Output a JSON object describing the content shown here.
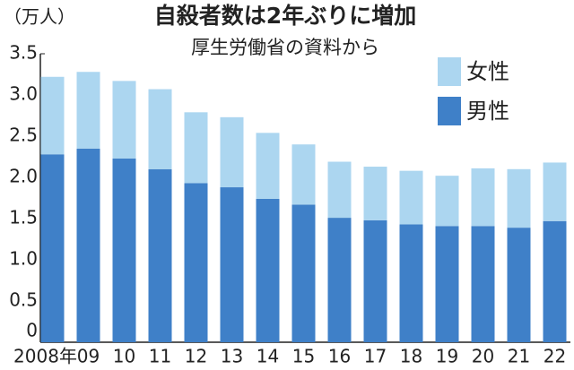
{
  "chart_data": {
    "type": "stacked-bar",
    "title": "自殺者数は2年ぶりに増加",
    "subtitle": "厚生労働省の資料から",
    "y_label": "（万人）",
    "categories": [
      "2008年",
      "09",
      "10",
      "11",
      "12",
      "13",
      "14",
      "15",
      "16",
      "17",
      "18",
      "19",
      "20",
      "21",
      "22"
    ],
    "series": [
      {
        "name": "男性",
        "color": "#3f80c8",
        "values": [
          2.28,
          2.35,
          2.23,
          2.1,
          1.93,
          1.88,
          1.74,
          1.67,
          1.51,
          1.48,
          1.43,
          1.41,
          1.41,
          1.39,
          1.47
        ]
      },
      {
        "name": "女性",
        "color": "#acd6f0",
        "values": [
          0.94,
          0.93,
          0.94,
          0.97,
          0.86,
          0.85,
          0.8,
          0.73,
          0.68,
          0.65,
          0.65,
          0.61,
          0.7,
          0.71,
          0.71
        ]
      }
    ],
    "ylim": [
      0,
      3.5
    ],
    "yticks": [
      0,
      0.5,
      {
        "value": 1,
        "label": "1.0"
      },
      1.5,
      {
        "value": 2,
        "label": "2.0"
      },
      2.5,
      {
        "value": 3,
        "label": "3.0"
      },
      3.5
    ],
    "grid": false
  }
}
